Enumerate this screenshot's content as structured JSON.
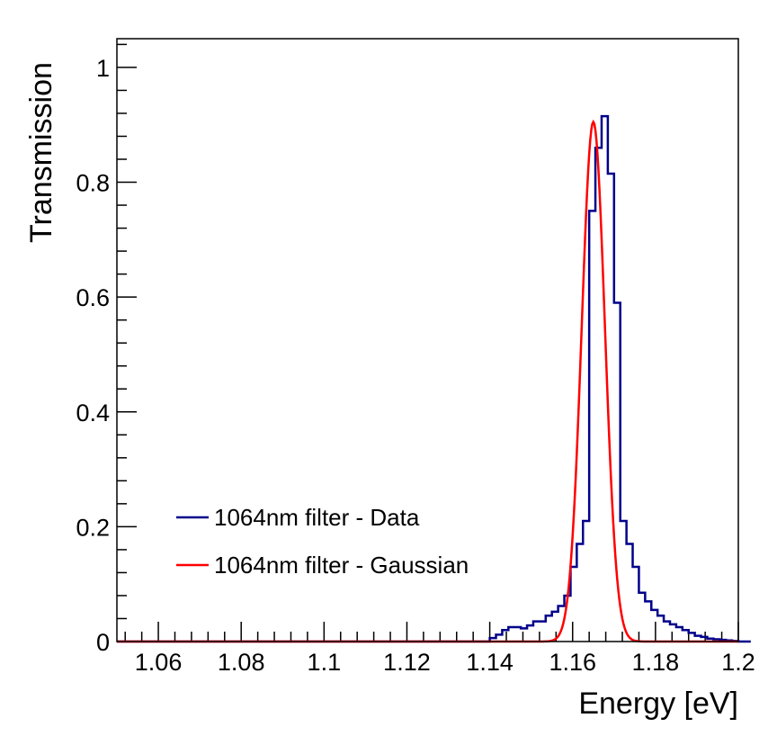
{
  "chart_data": {
    "type": "line",
    "xlabel": "Energy [eV]",
    "ylabel": "Transmission",
    "xlim": [
      1.05,
      1.2
    ],
    "ylim": [
      0,
      1.05
    ],
    "x_tick_values": [
      1.06,
      1.08,
      1.1,
      1.12,
      1.14,
      1.16,
      1.18,
      1.2
    ],
    "x_tick_labels": [
      "1.06",
      "1.08",
      "1.1",
      "1.12",
      "1.14",
      "1.16",
      "1.18",
      "1.2"
    ],
    "y_tick_values": [
      0,
      0.2,
      0.4,
      0.6,
      0.8,
      1
    ],
    "y_tick_labels": [
      "0",
      "0.2",
      "0.4",
      "0.6",
      "0.8",
      "1"
    ],
    "legend_position": "lower-left",
    "series": [
      {
        "name": "1064nm filter - Data",
        "style": "histogram-step",
        "color": "#00008b",
        "bin_width": 0.0015,
        "bin_edges_start": 1.05,
        "values": [
          0,
          0,
          0,
          0,
          0,
          0,
          0,
          0,
          0,
          0,
          0,
          0,
          0,
          0,
          0,
          0,
          0,
          0,
          0,
          0,
          0,
          0,
          0,
          0,
          0,
          0,
          0,
          0,
          0,
          0,
          0,
          0,
          0,
          0,
          0,
          0,
          0,
          0,
          0,
          0,
          0,
          0,
          0,
          0,
          0,
          0,
          0,
          0,
          0,
          0,
          0,
          0,
          0,
          0,
          0,
          0,
          0,
          0,
          0,
          0,
          0.006,
          0.012,
          0.02,
          0.025,
          0.025,
          0.023,
          0.028,
          0.035,
          0.035,
          0.045,
          0.052,
          0.062,
          0.08,
          0.13,
          0.17,
          0.21,
          0.75,
          0.86,
          0.915,
          0.815,
          0.59,
          0.21,
          0.17,
          0.13,
          0.085,
          0.07,
          0.055,
          0.045,
          0.035,
          0.03,
          0.025,
          0.02,
          0.015,
          0.01,
          0.008,
          0.005,
          0.004,
          0.003,
          0.002,
          0.001,
          0,
          0
        ]
      },
      {
        "name": "1064nm filter - Gaussian",
        "style": "smooth-line",
        "color": "#ff0000",
        "function": "gaussian",
        "amplitude": 0.905,
        "mean": 1.165,
        "sigma": 0.0028
      }
    ]
  }
}
